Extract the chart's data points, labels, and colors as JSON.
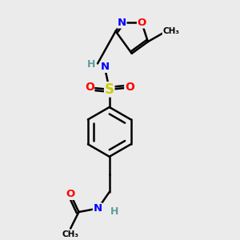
{
  "bg_color": "#ebebeb",
  "bond_color": "#000000",
  "line_width": 1.8,
  "atom_colors": {
    "N": "#0000ff",
    "O": "#ff0000",
    "S": "#cccc00",
    "H": "#5f9ea0",
    "C": "#000000"
  },
  "font_size": 9,
  "fig_size": [
    3.0,
    3.0
  ],
  "dpi": 100,
  "xlim": [
    0,
    10
  ],
  "ylim": [
    0,
    10
  ]
}
